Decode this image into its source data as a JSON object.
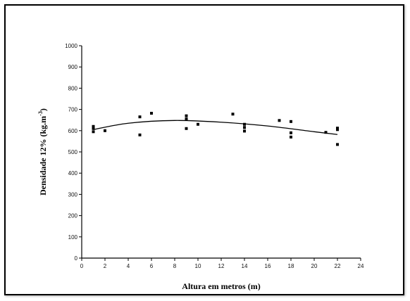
{
  "chart_data": {
    "type": "scatter",
    "title": "",
    "xlabel": "Altura em metros (m)",
    "ylabel": "Densidade 12% (kg.m-3)",
    "ylabel_main": "Densidade 12% (kg.m",
    "ylabel_sup": "-3",
    "ylabel_close": ")",
    "xlim": [
      0,
      24
    ],
    "ylim": [
      0,
      1000
    ],
    "x_ticks": [
      0,
      2,
      4,
      6,
      8,
      10,
      12,
      14,
      16,
      18,
      20,
      22,
      24
    ],
    "y_ticks": [
      0,
      100,
      200,
      300,
      400,
      500,
      600,
      700,
      800,
      900,
      1000
    ],
    "grid": false,
    "legend": "none",
    "series": [
      {
        "values": [
          [
            1,
            620
          ],
          [
            1,
            610
          ],
          [
            1,
            595
          ],
          [
            2,
            600
          ],
          [
            5,
            665
          ],
          [
            5,
            580
          ],
          [
            6,
            682
          ],
          [
            9,
            670
          ],
          [
            9,
            655
          ],
          [
            9,
            610
          ],
          [
            10,
            630
          ],
          [
            13,
            678
          ],
          [
            14,
            630
          ],
          [
            14,
            615
          ],
          [
            14,
            598
          ],
          [
            17,
            648
          ],
          [
            18,
            643
          ],
          [
            18,
            590
          ],
          [
            18,
            570
          ],
          [
            21,
            592
          ],
          [
            22,
            612
          ],
          [
            22,
            605
          ],
          [
            22,
            535
          ]
        ]
      }
    ],
    "trend": {
      "type": "polynomial",
      "x_range": [
        1,
        22
      ],
      "points": [
        [
          1,
          605
        ],
        [
          4,
          635
        ],
        [
          8,
          648
        ],
        [
          12,
          640
        ],
        [
          16,
          622
        ],
        [
          20,
          595
        ],
        [
          22,
          582
        ]
      ]
    },
    "marker_color": "#000000",
    "line_color": "#000000"
  }
}
